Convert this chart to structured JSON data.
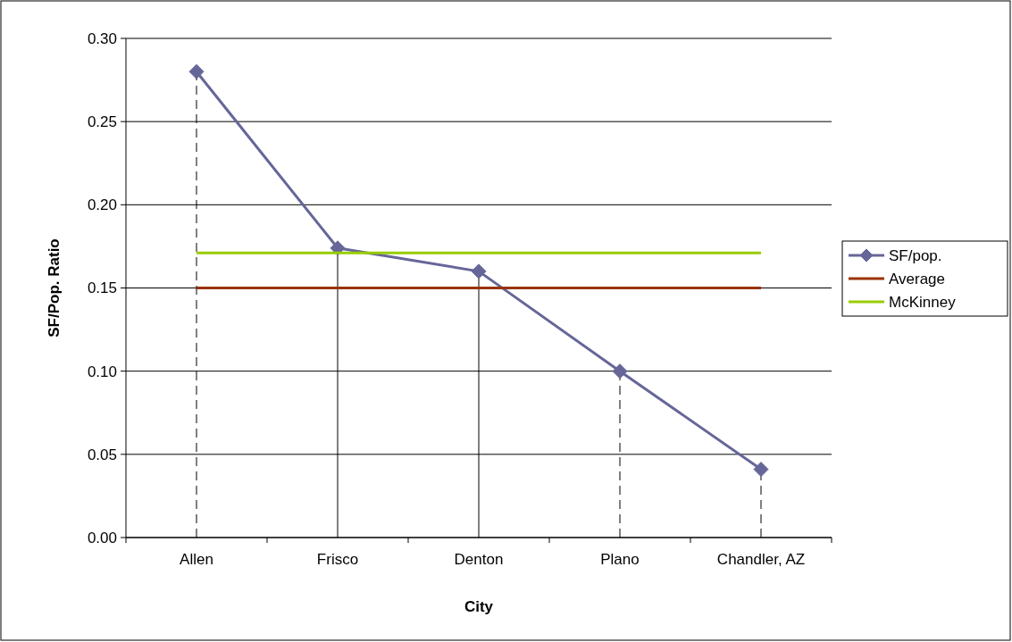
{
  "chart_data": {
    "type": "line",
    "xlabel": "City",
    "ylabel": "SF/Pop. Ratio",
    "categories": [
      "Allen",
      "Frisco",
      "Denton",
      "Plano",
      "Chandler, AZ"
    ],
    "series": [
      {
        "name": "SF/pop.",
        "color": "#666699",
        "values": [
          0.28,
          0.174,
          0.16,
          0.1,
          0.041
        ],
        "marker": "diamond"
      },
      {
        "name": "Average",
        "color": "#993300",
        "values": [
          0.15,
          0.15,
          0.15,
          0.15,
          0.15
        ],
        "marker": "none"
      },
      {
        "name": "McKinney",
        "color": "#99cc00",
        "values": [
          0.171,
          0.171,
          0.171,
          0.171,
          0.171
        ],
        "marker": "none"
      }
    ],
    "ylim": [
      0,
      0.3
    ],
    "yticks": [
      {
        "value": 0,
        "label": "0.00"
      },
      {
        "value": 0.05,
        "label": "0.05"
      },
      {
        "value": 0.1,
        "label": "0.10"
      },
      {
        "value": 0.15,
        "label": "0.15"
      },
      {
        "value": 0.2,
        "label": "0.20"
      },
      {
        "value": 0.25,
        "label": "0.25"
      },
      {
        "value": 0.3,
        "label": "0.30"
      }
    ],
    "ref_lines": [
      {
        "axis": "x",
        "value": "Allen",
        "line_style": "dashed"
      },
      {
        "axis": "x",
        "value": "Frisco",
        "line_style": "solid"
      },
      {
        "axis": "x",
        "value": "Denton",
        "line_style": "solid"
      },
      {
        "axis": "x",
        "value": "Plano",
        "line_style": "dashed"
      },
      {
        "axis": "x",
        "value": "Chandler, AZ",
        "line_style": "dashed"
      }
    ],
    "grid": "y",
    "legend": "right"
  }
}
